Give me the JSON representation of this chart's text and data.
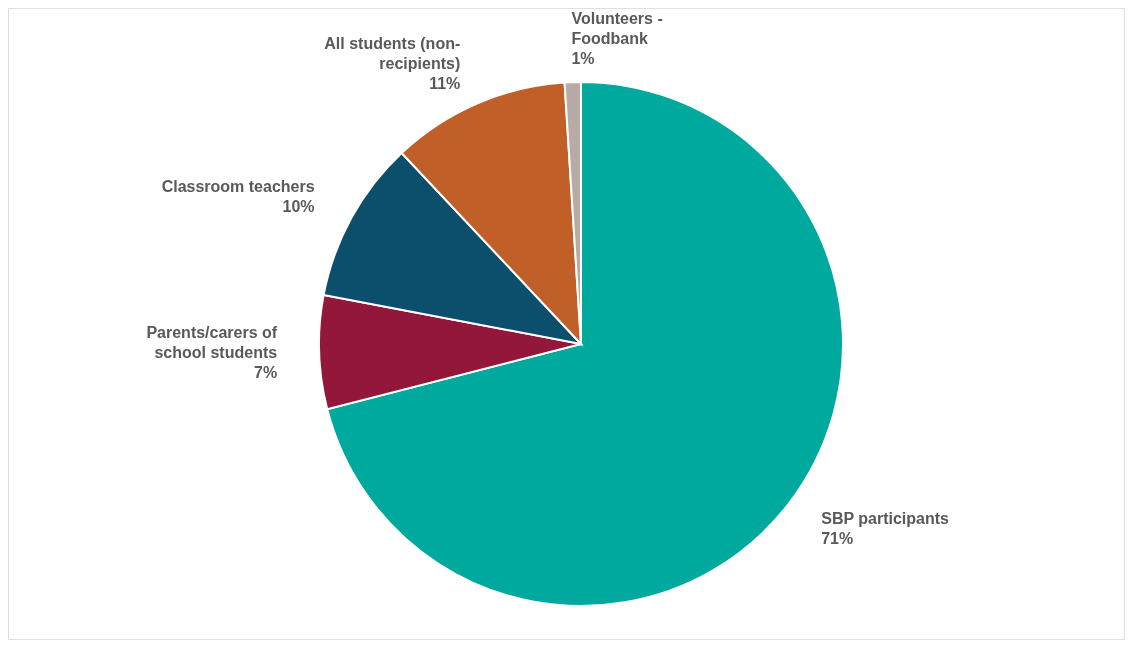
{
  "chart_data": {
    "type": "pie",
    "categories": [
      "SBP participants",
      "Parents/carers of school students",
      "Classroom teachers",
      "All students (non-recipients)",
      "Volunteers - Foodbank"
    ],
    "values": [
      71,
      7,
      10,
      11,
      1
    ],
    "value_labels": [
      "71%",
      "7%",
      "10%",
      "11%",
      "1%"
    ],
    "colors": [
      "#00a99d",
      "#93173b",
      "#0b4f6c",
      "#c06028",
      "#b8aaa6"
    ],
    "legend": false
  }
}
